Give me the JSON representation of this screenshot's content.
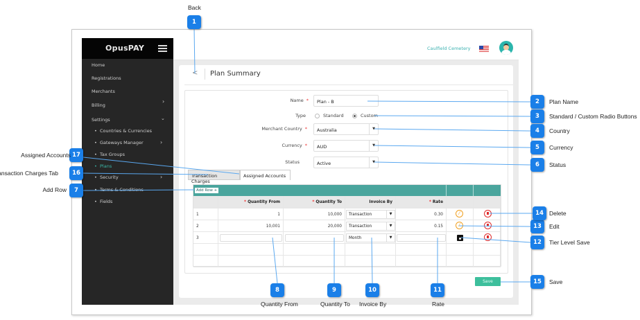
{
  "app": {
    "brand": "OpusPAY",
    "organization": "Caulfield Cemetery",
    "accent": "#4aa59d",
    "callout_color": "#1a7fe8"
  },
  "sidebar": {
    "items": [
      {
        "label": "Home"
      },
      {
        "label": "Registrations"
      },
      {
        "label": "Merchants"
      },
      {
        "label": "Billing"
      },
      {
        "label": "Settings"
      }
    ],
    "settings_sub": [
      {
        "label": "Countries & Currencies"
      },
      {
        "label": "Gateways Manager"
      },
      {
        "label": "Tax Groups"
      },
      {
        "label": "Plans",
        "active": true
      },
      {
        "label": "Security"
      },
      {
        "label": "Terms & Conditions"
      },
      {
        "label": "Fields"
      }
    ]
  },
  "page": {
    "title": "Plan Summary",
    "back": "<"
  },
  "form": {
    "name": {
      "label": "Name",
      "value": "Plan - B"
    },
    "type": {
      "label": "Type",
      "options": [
        "Standard",
        "Custom"
      ],
      "selected": "Custom"
    },
    "country": {
      "label": "Merchant Country",
      "value": "Australia"
    },
    "currency": {
      "label": "Currency",
      "value": "AUD"
    },
    "status": {
      "label": "Status",
      "value": "Active"
    }
  },
  "tabs": [
    {
      "label": "Transaction Charges"
    },
    {
      "label": "Assigned Accounts"
    }
  ],
  "table": {
    "add_row": "Add Row +",
    "headers": [
      "Quantity From",
      "Quantity To",
      "Invoice By",
      "Rate"
    ],
    "rows": [
      {
        "n": "1",
        "from": "1",
        "to": "10,000",
        "invoice": "Transaction",
        "rate": "0.30"
      },
      {
        "n": "2",
        "from": "10,001",
        "to": "20,000",
        "invoice": "Transaction",
        "rate": "0.15"
      },
      {
        "n": "3",
        "from": "",
        "to": "",
        "invoice": "Month",
        "rate": ""
      }
    ]
  },
  "save_label": "Save",
  "callouts": [
    {
      "n": "1",
      "label": "Back"
    },
    {
      "n": "2",
      "label": "Plan Name"
    },
    {
      "n": "3",
      "label": "Standard / Custom Radio Buttons"
    },
    {
      "n": "4",
      "label": "Country"
    },
    {
      "n": "5",
      "label": "Currency"
    },
    {
      "n": "6",
      "label": "Status"
    },
    {
      "n": "7",
      "label": "Add Row"
    },
    {
      "n": "8",
      "label": "Quantity From"
    },
    {
      "n": "9",
      "label": "Quantity To"
    },
    {
      "n": "10",
      "label": "Invoice By"
    },
    {
      "n": "11",
      "label": "Rate"
    },
    {
      "n": "12",
      "label": "Tier Level Save"
    },
    {
      "n": "13",
      "label": "Edit"
    },
    {
      "n": "14",
      "label": "Delete"
    },
    {
      "n": "15",
      "label": "Save"
    },
    {
      "n": "16",
      "label": "Transaction Charges Tab"
    },
    {
      "n": "17",
      "label": "Assigned Accounts"
    }
  ]
}
